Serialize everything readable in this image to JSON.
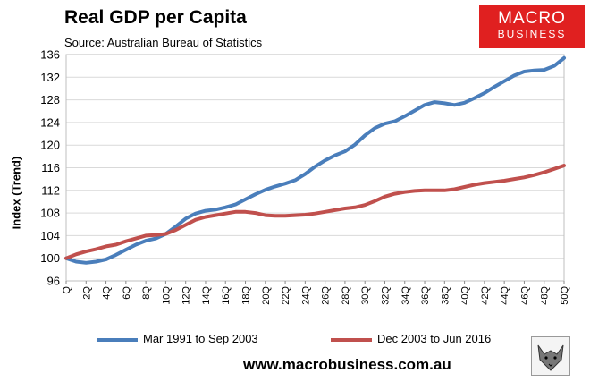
{
  "title": "Real GDP per Capita",
  "subtitle": "Source: Australian Bureau of Statistics",
  "logo": {
    "line1": "MACRO",
    "line2": "BUSINESS",
    "color": "#e02020"
  },
  "website": "www.macrobusiness.com.au",
  "chart_data": {
    "type": "line",
    "title": "Real GDP per Capita",
    "ylabel": "Index (Trend)",
    "xlabel": "",
    "ylim": [
      96,
      136
    ],
    "yticks": [
      96,
      100,
      104,
      108,
      112,
      116,
      120,
      124,
      128,
      132,
      136
    ],
    "grid": true,
    "legend_position": "bottom",
    "x_tick_labels": [
      "Q",
      "2Q",
      "4Q",
      "6Q",
      "8Q",
      "10Q",
      "12Q",
      "14Q",
      "16Q",
      "18Q",
      "20Q",
      "22Q",
      "24Q",
      "26Q",
      "28Q",
      "30Q",
      "32Q",
      "34Q",
      "36Q",
      "38Q",
      "40Q",
      "42Q",
      "44Q",
      "46Q",
      "48Q",
      "50Q"
    ],
    "series": [
      {
        "name": "Mar 1991 to Sep 2003",
        "color": "#4a7ebb",
        "values": [
          100,
          99.4,
          99.2,
          99.4,
          99.8,
          100.6,
          101.5,
          102.4,
          103.1,
          103.5,
          104.3,
          105.6,
          107,
          107.9,
          108.4,
          108.6,
          109,
          109.5,
          110.4,
          111.3,
          112.1,
          112.7,
          113.2,
          113.8,
          114.9,
          116.2,
          117.3,
          118.2,
          118.9,
          120.1,
          121.7,
          123,
          123.8,
          124.2,
          125.1,
          126.1,
          127.1,
          127.6,
          127.4,
          127.1,
          127.5,
          128.3,
          129.2,
          130.3,
          131.3,
          132.3,
          133,
          133.2,
          133.3,
          134,
          135.4
        ]
      },
      {
        "name": "Dec 2003 to Jun 2016",
        "color": "#c0504d",
        "values": [
          100,
          100.7,
          101.2,
          101.6,
          102.1,
          102.4,
          103,
          103.5,
          104,
          104.1,
          104.3,
          105,
          105.9,
          106.8,
          107.3,
          107.6,
          107.9,
          108.2,
          108.2,
          108,
          107.6,
          107.5,
          107.5,
          107.6,
          107.7,
          107.9,
          108.2,
          108.5,
          108.8,
          109,
          109.4,
          110.1,
          110.9,
          111.4,
          111.7,
          111.9,
          112,
          112,
          112,
          112.2,
          112.6,
          113,
          113.3,
          113.5,
          113.7,
          114,
          114.3,
          114.7,
          115.2,
          115.8,
          116.4
        ]
      }
    ]
  }
}
